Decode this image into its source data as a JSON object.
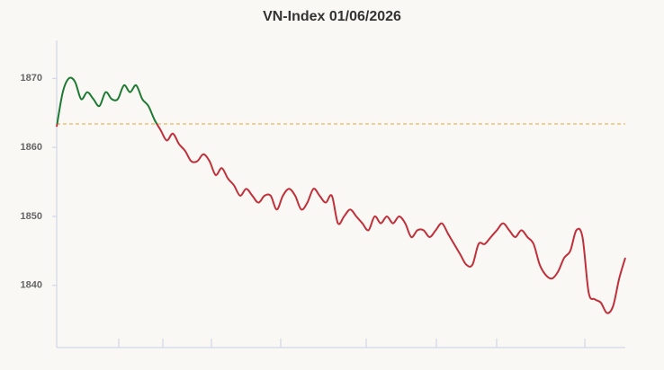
{
  "chart_data": {
    "type": "line",
    "title": "VN-Index 01/06/2026",
    "values": [
      1863,
      1868,
      1870,
      1869.5,
      1867,
      1868,
      1867,
      1866,
      1868,
      1867,
      1867,
      1869,
      1868,
      1869,
      1867,
      1866,
      1864,
      1862.5,
      1861,
      1862,
      1860.5,
      1859.5,
      1858,
      1858,
      1859,
      1858,
      1856,
      1857,
      1855.5,
      1854.5,
      1853,
      1854,
      1853,
      1852,
      1853,
      1853,
      1851,
      1853,
      1854,
      1853,
      1851,
      1852,
      1854,
      1853,
      1852,
      1853,
      1849,
      1850,
      1851,
      1850,
      1849,
      1848,
      1850,
      1849,
      1850,
      1849,
      1850,
      1849,
      1847,
      1848,
      1848,
      1847,
      1848,
      1849,
      1847.5,
      1846,
      1844.5,
      1843,
      1843,
      1846,
      1846,
      1847,
      1848,
      1849,
      1848,
      1847,
      1848,
      1847,
      1846,
      1843,
      1841.5,
      1841,
      1842,
      1844,
      1845,
      1848,
      1847,
      1839,
      1838,
      1837.5,
      1836,
      1837,
      1841,
      1844
    ],
    "reference": 1863.4,
    "reference_color": "#e8a33a",
    "above_color": "#1e7a32",
    "below_color": "#c0303a",
    "ylim": [
      1831,
      1875.5
    ],
    "yticks": [
      1840,
      1850,
      1860,
      1870
    ]
  }
}
